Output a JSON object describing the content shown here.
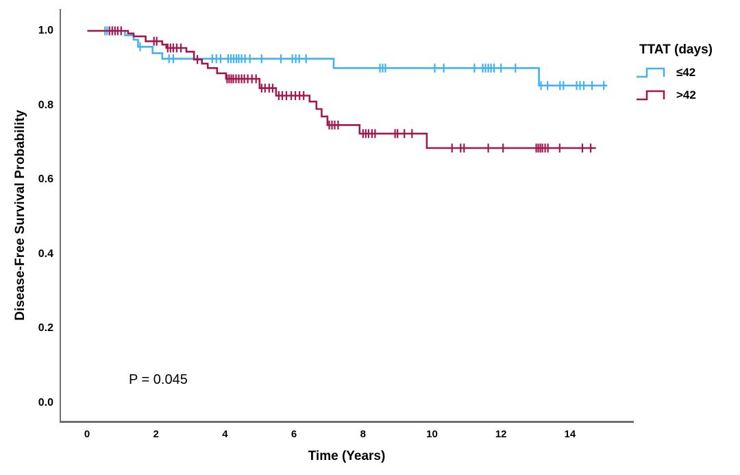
{
  "figure": {
    "y_axis_title": "Disease-Free Survival Probability",
    "x_axis_title": "Time (Years)",
    "p_value_label": "P = 0.045",
    "legend": {
      "title": "TTAT (days)",
      "entries": [
        {
          "label": "≤42",
          "color": "#41B2F0"
        },
        {
          "label": ">42",
          "color": "#A21750"
        }
      ]
    }
  },
  "chart_data": {
    "type": "line",
    "subtype": "kaplan-meier-step",
    "title": "",
    "xlabel": "Time (Years)",
    "ylabel": "Disease-Free Survival Probability",
    "xlim": [
      -0.8,
      15.8
    ],
    "ylim": [
      -0.05,
      1.06
    ],
    "x_ticks": [
      0,
      2,
      4,
      6,
      8,
      10,
      12,
      14
    ],
    "x_tick_labels": [
      "0",
      "2",
      "4",
      "6",
      "8",
      "10",
      "12",
      "14"
    ],
    "y_ticks": [
      0.0,
      0.2,
      0.4,
      0.6,
      0.8,
      1.0
    ],
    "y_tick_labels": [
      "0.0",
      "0.2",
      "0.4",
      "0.6",
      "0.8",
      "1.0"
    ],
    "grid": false,
    "legend_position": "right",
    "legend_title": "TTAT (days)",
    "annotation": "P = 0.045",
    "series": [
      {
        "name": "≤42",
        "color": "#41B2F0",
        "steps": [
          [
            0.0,
            1.0
          ],
          [
            1.1,
            0.988
          ],
          [
            1.35,
            0.976
          ],
          [
            1.48,
            0.957
          ],
          [
            1.9,
            0.94
          ],
          [
            2.18,
            0.925
          ],
          [
            7.15,
            0.9
          ],
          [
            13.1,
            0.853
          ]
        ],
        "end_t": 15.08,
        "censor_times": [
          0.52,
          0.58,
          1.54,
          2.38,
          2.5,
          3.63,
          3.75,
          3.87,
          4.09,
          4.17,
          4.25,
          4.33,
          4.4,
          4.48,
          4.58,
          4.72,
          5.06,
          5.62,
          5.95,
          6.05,
          6.15,
          6.35,
          8.49,
          8.57,
          8.65,
          10.08,
          10.34,
          11.23,
          11.47,
          11.55,
          11.63,
          11.71,
          11.8,
          12.0,
          12.42,
          13.16,
          13.35,
          13.71,
          13.81,
          14.19,
          14.29,
          14.4,
          14.64,
          14.98
        ]
      },
      {
        "name": ">42",
        "color": "#A21750",
        "steps": [
          [
            0.02,
            1.0
          ],
          [
            1.19,
            0.993
          ],
          [
            1.35,
            0.985
          ],
          [
            1.7,
            0.972
          ],
          [
            2.18,
            0.963
          ],
          [
            2.3,
            0.954
          ],
          [
            2.88,
            0.944
          ],
          [
            3.1,
            0.923
          ],
          [
            3.33,
            0.912
          ],
          [
            3.5,
            0.9
          ],
          [
            3.77,
            0.886
          ],
          [
            4.03,
            0.871
          ],
          [
            5.0,
            0.846
          ],
          [
            5.48,
            0.826
          ],
          [
            6.45,
            0.81
          ],
          [
            6.65,
            0.79
          ],
          [
            6.8,
            0.77
          ],
          [
            6.97,
            0.747
          ],
          [
            7.9,
            0.724
          ],
          [
            9.85,
            0.685
          ]
        ],
        "end_t": 14.75,
        "censor_times": [
          0.65,
          0.73,
          0.81,
          0.89,
          0.99,
          1.94,
          2.02,
          2.34,
          2.42,
          2.5,
          2.6,
          2.72,
          3.2,
          4.06,
          4.12,
          4.18,
          4.24,
          4.32,
          4.4,
          4.48,
          4.56,
          4.66,
          4.78,
          4.9,
          5.06,
          5.16,
          5.28,
          5.38,
          5.56,
          5.66,
          5.78,
          5.92,
          6.04,
          6.16,
          6.28,
          7.02,
          7.1,
          7.18,
          7.28,
          8.0,
          8.08,
          8.16,
          8.26,
          8.35,
          8.93,
          9.0,
          9.2,
          9.42,
          10.58,
          10.83,
          10.93,
          11.63,
          12.06,
          13.02,
          13.08,
          13.14,
          13.2,
          13.28,
          13.36,
          13.7,
          14.36,
          14.6
        ]
      }
    ]
  },
  "colors": {
    "axis": "#6f6f6f",
    "background": "#ffffff",
    "text": "#000000"
  }
}
